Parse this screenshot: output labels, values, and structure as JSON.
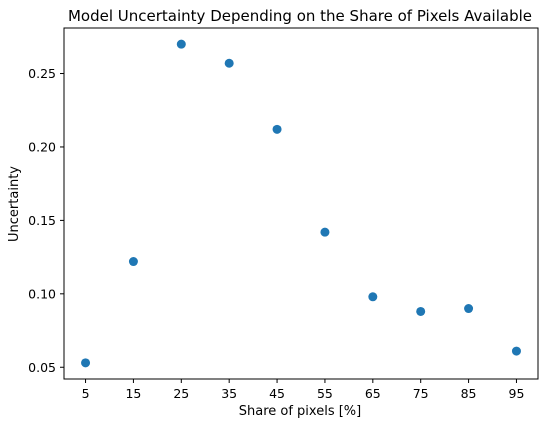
{
  "chart_data": {
    "type": "scatter",
    "title": "Model Uncertainty Depending on the Share of Pixels Available",
    "xlabel": "Share of pixels [%]",
    "ylabel": "Uncertainty",
    "x": [
      5,
      15,
      25,
      35,
      45,
      55,
      65,
      75,
      85,
      95
    ],
    "y": [
      0.053,
      0.122,
      0.27,
      0.257,
      0.212,
      0.142,
      0.098,
      0.088,
      0.09,
      0.061
    ],
    "xticks": [
      "5",
      "15",
      "25",
      "35",
      "45",
      "55",
      "65",
      "75",
      "85",
      "95"
    ],
    "yticks": [
      "0.05",
      "0.10",
      "0.15",
      "0.20",
      "0.25"
    ],
    "xlim": [
      0.5,
      99.5
    ],
    "ylim": [
      0.042,
      0.281
    ],
    "grid": false,
    "marker_color": "#1f77b4"
  }
}
